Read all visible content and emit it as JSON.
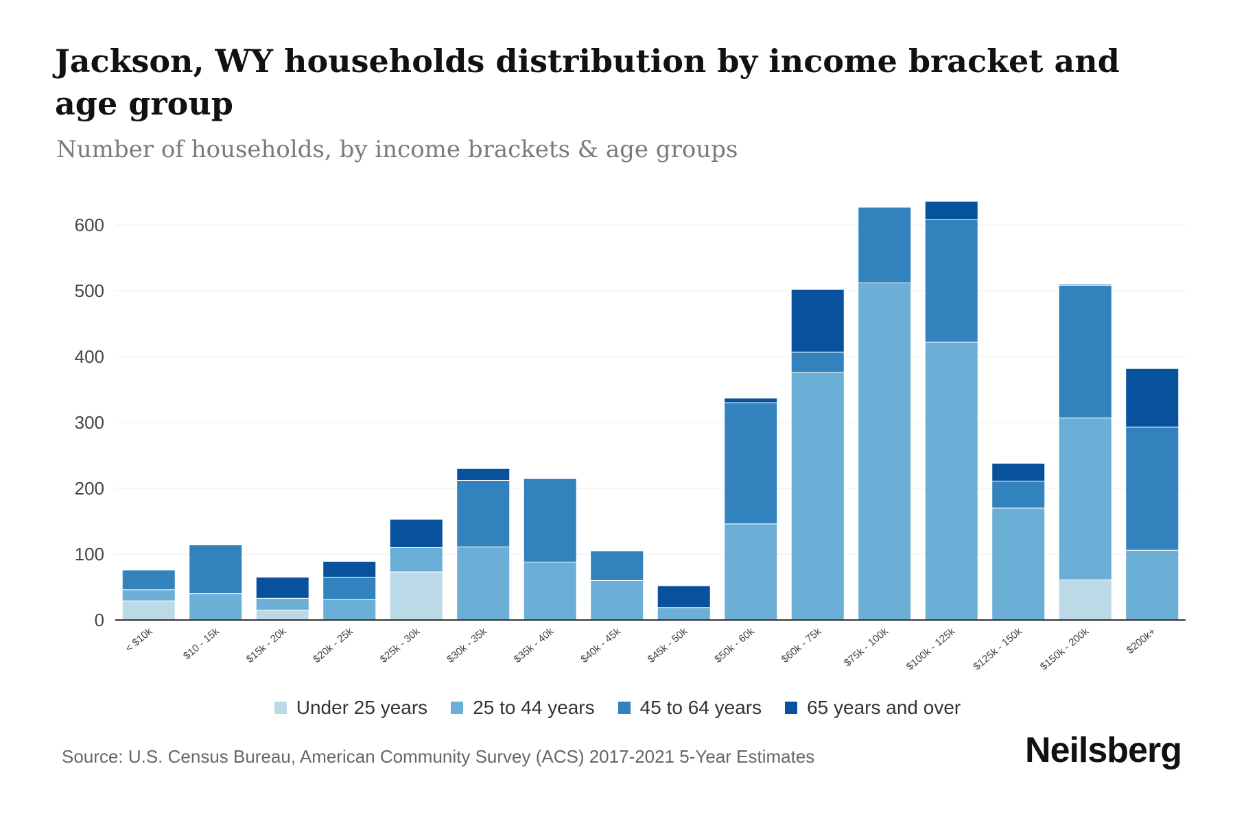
{
  "header": {
    "title": "Jackson, WY households distribution by income bracket and age group",
    "subtitle": "Number of households, by income brackets & age groups"
  },
  "footer": {
    "source": "Source: U.S. Census Bureau, American Community Survey (ACS) 2017-2021 5-Year Estimates",
    "brand": "Neilsberg"
  },
  "chart_data": {
    "type": "bar",
    "stacked": true,
    "title": "Jackson, WY households distribution by income bracket and age group",
    "subtitle": "Number of households, by income brackets & age groups",
    "xlabel": "",
    "ylabel": "",
    "ylim": [
      0,
      650
    ],
    "yticks": [
      0,
      100,
      200,
      300,
      400,
      500,
      600
    ],
    "grid": true,
    "legend_position": "bottom",
    "categories": [
      "< $10k",
      "$10 - 15k",
      "$15k - 20k",
      "$20k - 25k",
      "$25k - 30k",
      "$30k - 35k",
      "$35k - 40k",
      "$40k - 45k",
      "$45k - 50k",
      "$50k - 60k",
      "$60k - 75k",
      "$75k - 100k",
      "$100k - 125k",
      "$125k - 150k",
      "$150k - 200k",
      "$200k+"
    ],
    "series": [
      {
        "name": "Under 25 years",
        "color": "#bcd9e8",
        "values": [
          29,
          0,
          15,
          0,
          73,
          0,
          0,
          0,
          0,
          0,
          0,
          0,
          0,
          0,
          61,
          0
        ]
      },
      {
        "name": "25 to 44 years",
        "color": "#6baed6",
        "values": [
          17,
          40,
          18,
          31,
          37,
          111,
          88,
          60,
          19,
          146,
          376,
          512,
          422,
          170,
          246,
          106
        ]
      },
      {
        "name": "45 to 64 years",
        "color": "#3182bd",
        "values": [
          30,
          74,
          0,
          34,
          0,
          101,
          127,
          45,
          0,
          184,
          31,
          115,
          186,
          41,
          201,
          187
        ]
      },
      {
        "name": "65 years and over",
        "color": "#08519c",
        "values": [
          0,
          0,
          32,
          24,
          43,
          18,
          0,
          0,
          33,
          7,
          95,
          0,
          28,
          27,
          2,
          89
        ]
      }
    ]
  }
}
